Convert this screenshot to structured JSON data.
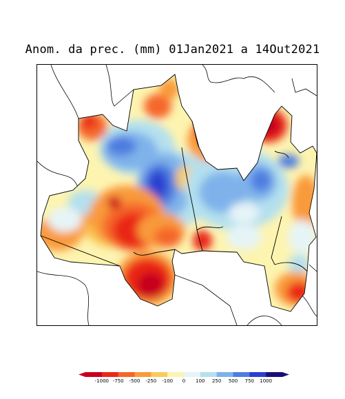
{
  "title": "Anom. da prec. (mm) 01Jan2021 a 14Out2021",
  "legend": {
    "ticks": [
      "-1000",
      "-750",
      "-500",
      "-250",
      "-100",
      "0",
      "100",
      "250",
      "500",
      "750",
      "1000"
    ],
    "colors": [
      "#c8001e",
      "#ea2818",
      "#f5662a",
      "#f99a3a",
      "#fbcb5a",
      "#fdf4b0",
      "#e6f4f7",
      "#b4e0ef",
      "#7fb2ea",
      "#4e7de0",
      "#2b3fd0",
      "#1a0f78"
    ]
  }
}
